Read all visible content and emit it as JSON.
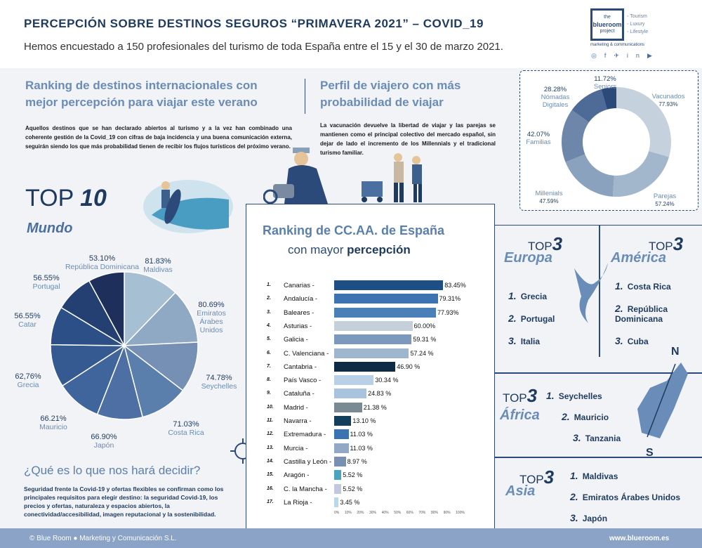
{
  "header": {
    "title": "PERCEPCIÓN SOBRE DESTINOS SEGUROS “PRIMAVERA 2021” – COVID_19",
    "subtitle": "Hemos encuestado a 150 profesionales del turismo de toda España entre el 15 y el 30 de marzo 2021."
  },
  "logo": {
    "the": "the",
    "blueroom": "blueroom",
    "project": "project",
    "tags": [
      "◦ Tourism",
      "◦ Luxury",
      "◦ Lifestyle"
    ],
    "sub": "marketing & communications"
  },
  "intl": {
    "title": "Ranking de destinos internacionales con mejor percepción para viajar este verano",
    "text": "Aquellos destinos que se han declarado abiertos al turismo y a la vez han combinado una coherente gestión de la Covid_19 con cifras de baja incidencia y una buena comunicación externa, seguirán siendo los que más probabilidad tienen de recibir los flujos turísticos del próximo verano."
  },
  "perfil": {
    "title": "Perfil de viajero con más probabilidad de viajar",
    "text": "La vacunación devuelve la libertad de viajar y las parejas se mantienen como el principal colectivo del mercado español, sin dejar de lado el incremento de los Millennials y el tradicional turismo familiar."
  },
  "top10": {
    "top": "TOP",
    "num": "10",
    "region": "Mundo"
  },
  "ranking": {
    "title": "Ranking de CC.AA. de España",
    "sub_a": "con mayor ",
    "sub_b": "percepción"
  },
  "question": {
    "title": "¿Qué es lo que nos hará decidir?",
    "text": "Seguridad frente la Covid-19 y ofertas flexibles se confirman como los principales requisitos para elegir destino: la seguridad Covid-19, los precios y ofertas, naturaleza y espacios abiertos, la conectividad/accesibilidad, imagen reputacional y la sostenibilidad."
  },
  "europa": {
    "top": "TOP",
    "num": "3",
    "region": "Europa",
    "items": [
      "Grecia",
      "Portugal",
      "Italia"
    ]
  },
  "america": {
    "top": "TOP",
    "num": "3",
    "region": "América",
    "items": [
      "Costa Rica",
      "República Dominicana",
      "Cuba"
    ]
  },
  "africa": {
    "top": "TOP",
    "num": "3",
    "region": "África",
    "items": [
      "Seychelles",
      "Mauricio",
      "Tanzania"
    ],
    "n": "N",
    "s": "S"
  },
  "asia": {
    "top": "TOP",
    "num": "3",
    "region": "Asia",
    "items": [
      "Maldivas",
      "Emiratos Árabes Unidos",
      "Japón"
    ]
  },
  "footer": {
    "left": "© Blue Room ● Marketing y Comunicación S.L.",
    "right": "www.blueroom.es"
  },
  "chart_data": [
    {
      "type": "pie",
      "series": [
        {
          "label": "Maldivas",
          "value": "81.83%"
        },
        {
          "label": "Emiratos Árabes Unidos",
          "value": "80.69%"
        },
        {
          "label": "Seychelles",
          "value": "74.78%"
        },
        {
          "label": "Costa Rica",
          "value": "71.03%"
        },
        {
          "label": "Japón",
          "value": "66.90%"
        },
        {
          "label": "Mauricio",
          "value": "66.21%"
        },
        {
          "label": "Grecia",
          "value": "62,76%"
        },
        {
          "label": "Catar",
          "value": "56.55%"
        },
        {
          "label": "Portugal",
          "value": "56.55%"
        },
        {
          "label": "República Dominicana",
          "value": "53.10%"
        }
      ],
      "values": [
        81.83,
        80.69,
        74.78,
        71.03,
        66.9,
        66.21,
        62.76,
        56.55,
        56.55,
        53.1
      ],
      "colors": [
        "#a7bfd3",
        "#8fa9c4",
        "#7590b4",
        "#5a7fad",
        "#4e6fa3",
        "#40659c",
        "#355a92",
        "#2b4f86",
        "#243f72",
        "#1d2f5a"
      ]
    },
    {
      "type": "donut",
      "series": [
        {
          "label": "Vacunados",
          "value": "77.93%",
          "color": "#c5d2de"
        },
        {
          "label": "Parejas",
          "value": "57.24%",
          "color": "#a3b7cc"
        },
        {
          "label": "Millenials",
          "value": "47.59%",
          "color": "#8ba2bf"
        },
        {
          "label": "Familias",
          "value": "42.07%",
          "color": "#6d86aa"
        },
        {
          "label": "Nómadas Digitales",
          "value": "28.28%",
          "color": "#4e6a96"
        },
        {
          "label": "Seniors",
          "value": "11.72%",
          "color": "#2b4a7a"
        }
      ],
      "values": [
        77.93,
        57.24,
        47.59,
        42.07,
        28.28,
        11.72
      ]
    },
    {
      "type": "bar",
      "orientation": "horizontal",
      "xlim": [
        0,
        100
      ],
      "ticks": [
        "0%",
        "10%",
        "20%",
        "30%",
        "40%",
        "50%",
        "60%",
        "70%",
        "80%",
        "90%",
        "100%"
      ],
      "rows": [
        {
          "n": "1.",
          "label": "Canarias -",
          "value": 83.45,
          "text": "83.45%",
          "color": "#1d4e86"
        },
        {
          "n": "2.",
          "label": "Andalucía -",
          "value": 79.31,
          "text": "79.31%",
          "color": "#3d73b0"
        },
        {
          "n": "3.",
          "label": "Baleares -",
          "value": 77.93,
          "text": "77.93%",
          "color": "#4a7fb8"
        },
        {
          "n": "4.",
          "label": "Asturias -",
          "value": 60.0,
          "text": "60.00%",
          "color": "#c6d0da"
        },
        {
          "n": "5.",
          "label": "Galicia -",
          "value": 59.31,
          "text": "59.31 %",
          "color": "#7c99bd"
        },
        {
          "n": "6.",
          "label": "C. Valenciana -",
          "value": 57.24,
          "text": "57.24 %",
          "color": "#9fb6cf"
        },
        {
          "n": "7.",
          "label": "Cantabria -",
          "value": 46.9,
          "text": "46.90 %",
          "color": "#0f2a44"
        },
        {
          "n": "8.",
          "label": "País Vasco -",
          "value": 30.34,
          "text": "30.34 %",
          "color": "#b8d1e6"
        },
        {
          "n": "9.",
          "label": "Cataluña -",
          "value": 24.83,
          "text": "24.83 %",
          "color": "#a7c3de"
        },
        {
          "n": "10.",
          "label": "Madrid -",
          "value": 21.38,
          "text": "21.38 %",
          "color": "#7a8a94"
        },
        {
          "n": "11.",
          "label": "Navarra -",
          "value": 13.1,
          "text": "13.10 %",
          "color": "#143f5c"
        },
        {
          "n": "12.",
          "label": "Extremadura -",
          "value": 11.03,
          "text": "11.03 %",
          "color": "#3b72b2"
        },
        {
          "n": "13.",
          "label": "Murcia -",
          "value": 11.03,
          "text": "11.03 %",
          "color": "#93a7c7"
        },
        {
          "n": "14.",
          "label": "Castilla y León -",
          "value": 8.97,
          "text": "8.97 %",
          "color": "#7a90b0"
        },
        {
          "n": "15.",
          "label": "Aragón -",
          "value": 5.52,
          "text": "5.52 %",
          "color": "#4aa3bf"
        },
        {
          "n": "16.",
          "label": "C. la Mancha -",
          "value": 5.52,
          "text": "5.52 %",
          "color": "#c3c8de"
        },
        {
          "n": "17.",
          "label": "La Rioja -",
          "value": 3.45,
          "text": "3.45 %",
          "color": "#b9d8ea"
        }
      ]
    }
  ]
}
